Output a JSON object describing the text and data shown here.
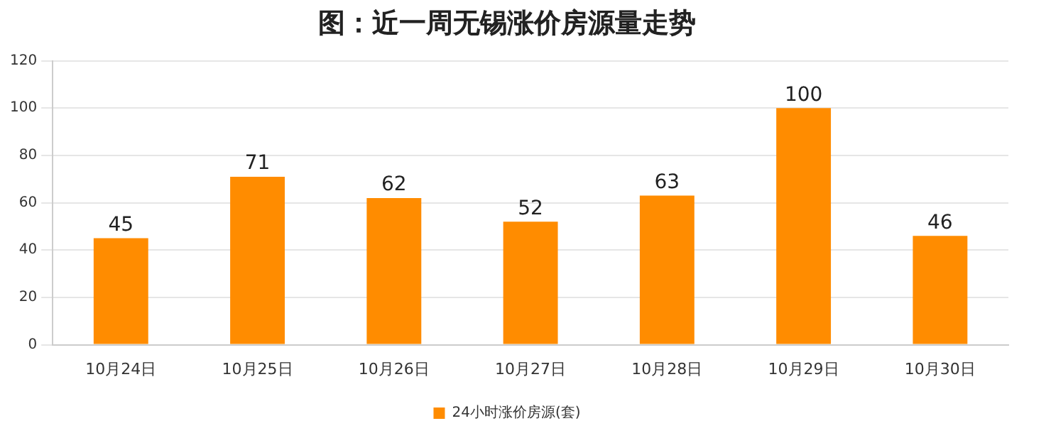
{
  "chart_data": {
    "type": "bar",
    "title": "图：近一周无锡涨价房源量走势",
    "categories": [
      "10月24日",
      "10月25日",
      "10月26日",
      "10月27日",
      "10月28日",
      "10月29日",
      "10月30日"
    ],
    "series": [
      {
        "name": "24小时涨价房源(套)",
        "color": "#ff8c00",
        "values": [
          45,
          71,
          62,
          52,
          63,
          100,
          46
        ]
      }
    ],
    "ylim": [
      0,
      120
    ],
    "yticks": [
      0,
      20,
      40,
      60,
      80,
      100,
      120
    ],
    "grid": "y",
    "legend": "bottom",
    "data_labels": true
  }
}
